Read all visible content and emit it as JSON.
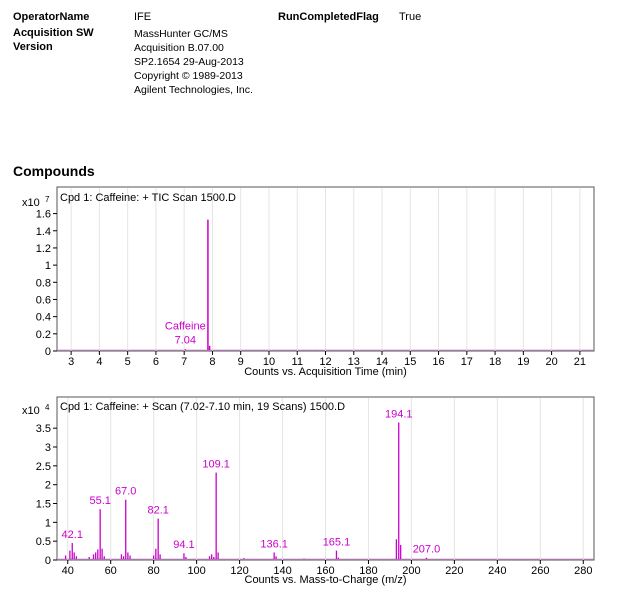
{
  "header": {
    "operator_key": "OperatorName",
    "operator_val": "IFE",
    "run_flag_key": "RunCompletedFlag",
    "run_flag_val": "True",
    "acq_key": "Acquisition SW",
    "version_key": "Version",
    "acq_lines": [
      "MassHunter GC/MS",
      "Acquisition  B.07.00",
      "SP2.1654  29-Aug-2013",
      "Copyright © 1989-2013",
      "Agilent Technologies, Inc."
    ]
  },
  "section_title": "Compounds",
  "colors": {
    "trace": "#cc00cc",
    "trace_light": "#e6a8e6",
    "grid": "#e5e5e5"
  },
  "chart_data": [
    {
      "type": "line",
      "title": "Cpd 1: Caffeine: + TIC Scan 1500.D",
      "xlabel": "Counts vs. Acquisition Time (min)",
      "ylabel": "",
      "scale_base": "x10",
      "scale_exp": "7",
      "xlim": [
        2.5,
        21.5
      ],
      "ylim": [
        0,
        1.7
      ],
      "xticks": [
        3,
        4,
        5,
        6,
        7,
        8,
        9,
        10,
        11,
        12,
        13,
        14,
        15,
        16,
        17,
        18,
        19,
        20,
        21
      ],
      "yticks": [
        0,
        0.2,
        0.4,
        0.6,
        0.8,
        1,
        1.2,
        1.4,
        1.6
      ],
      "ytick_labels": [
        "0",
        "0.2",
        "0.4",
        "0.6",
        "0.8",
        "1",
        "1.2",
        "1.4",
        "1.6"
      ],
      "grid": true,
      "peaks": [
        {
          "x": 7.04,
          "y": 0.02
        },
        {
          "x": 7.84,
          "y": 1.53
        },
        {
          "x": 7.9,
          "y": 0.06
        },
        {
          "x": 11.7,
          "y": 0.01
        }
      ],
      "annotations": [
        {
          "name": "Caffeine",
          "value": "7.04",
          "x": 7.04,
          "y": 0.02
        }
      ]
    },
    {
      "type": "bar",
      "title": "Cpd 1: Caffeine: + Scan (7.02-7.10 min, 19 Scans) 1500.D",
      "xlabel": "Counts vs. Mass-to-Charge (m/z)",
      "ylabel": "",
      "scale_base": "x10",
      "scale_exp": "4",
      "xlim": [
        35,
        285
      ],
      "ylim": [
        0,
        3.85
      ],
      "xticks": [
        40,
        60,
        80,
        100,
        120,
        140,
        160,
        180,
        200,
        220,
        240,
        260,
        280
      ],
      "yticks": [
        0,
        0.5,
        1,
        1.5,
        2,
        2.5,
        3,
        3.5
      ],
      "ytick_labels": [
        "0",
        "0.5",
        "1",
        "1.5",
        "2",
        "2.5",
        "3",
        "3.5"
      ],
      "grid": true,
      "peaks": [
        {
          "x": 39,
          "y": 0.12
        },
        {
          "x": 41,
          "y": 0.25
        },
        {
          "x": 42.1,
          "y": 0.45
        },
        {
          "x": 43,
          "y": 0.2
        },
        {
          "x": 44,
          "y": 0.1
        },
        {
          "x": 50,
          "y": 0.08
        },
        {
          "x": 52,
          "y": 0.15
        },
        {
          "x": 53,
          "y": 0.2
        },
        {
          "x": 54,
          "y": 0.28
        },
        {
          "x": 55.1,
          "y": 1.35
        },
        {
          "x": 56,
          "y": 0.3
        },
        {
          "x": 57,
          "y": 0.1
        },
        {
          "x": 65,
          "y": 0.15
        },
        {
          "x": 66,
          "y": 0.1
        },
        {
          "x": 67.0,
          "y": 1.6
        },
        {
          "x": 68,
          "y": 0.2
        },
        {
          "x": 69,
          "y": 0.12
        },
        {
          "x": 80,
          "y": 0.12
        },
        {
          "x": 81,
          "y": 0.3
        },
        {
          "x": 82.1,
          "y": 1.1
        },
        {
          "x": 83,
          "y": 0.15
        },
        {
          "x": 94.1,
          "y": 0.18
        },
        {
          "x": 95,
          "y": 0.08
        },
        {
          "x": 106,
          "y": 0.1
        },
        {
          "x": 107,
          "y": 0.15
        },
        {
          "x": 108,
          "y": 0.08
        },
        {
          "x": 109.1,
          "y": 2.32
        },
        {
          "x": 110,
          "y": 0.2
        },
        {
          "x": 122,
          "y": 0.05
        },
        {
          "x": 136.1,
          "y": 0.2
        },
        {
          "x": 137,
          "y": 0.1
        },
        {
          "x": 150,
          "y": 0.04
        },
        {
          "x": 165.1,
          "y": 0.25
        },
        {
          "x": 166,
          "y": 0.06
        },
        {
          "x": 193,
          "y": 0.55
        },
        {
          "x": 194.1,
          "y": 3.65
        },
        {
          "x": 195,
          "y": 0.4
        },
        {
          "x": 207.0,
          "y": 0.06
        }
      ],
      "annotations": [
        {
          "value": "42.1",
          "x": 42.1,
          "y": 0.45
        },
        {
          "value": "55.1",
          "x": 55.1,
          "y": 1.35
        },
        {
          "value": "67.0",
          "x": 67.0,
          "y": 1.6
        },
        {
          "value": "82.1",
          "x": 82.1,
          "y": 1.1
        },
        {
          "value": "94.1",
          "x": 94.1,
          "y": 0.18
        },
        {
          "value": "109.1",
          "x": 109.1,
          "y": 2.32
        },
        {
          "value": "136.1",
          "x": 136.1,
          "y": 0.2
        },
        {
          "value": "165.1",
          "x": 165.1,
          "y": 0.25
        },
        {
          "value": "194.1",
          "x": 194.1,
          "y": 3.65
        },
        {
          "value": "207.0",
          "x": 207.0,
          "y": 0.06
        }
      ]
    }
  ]
}
